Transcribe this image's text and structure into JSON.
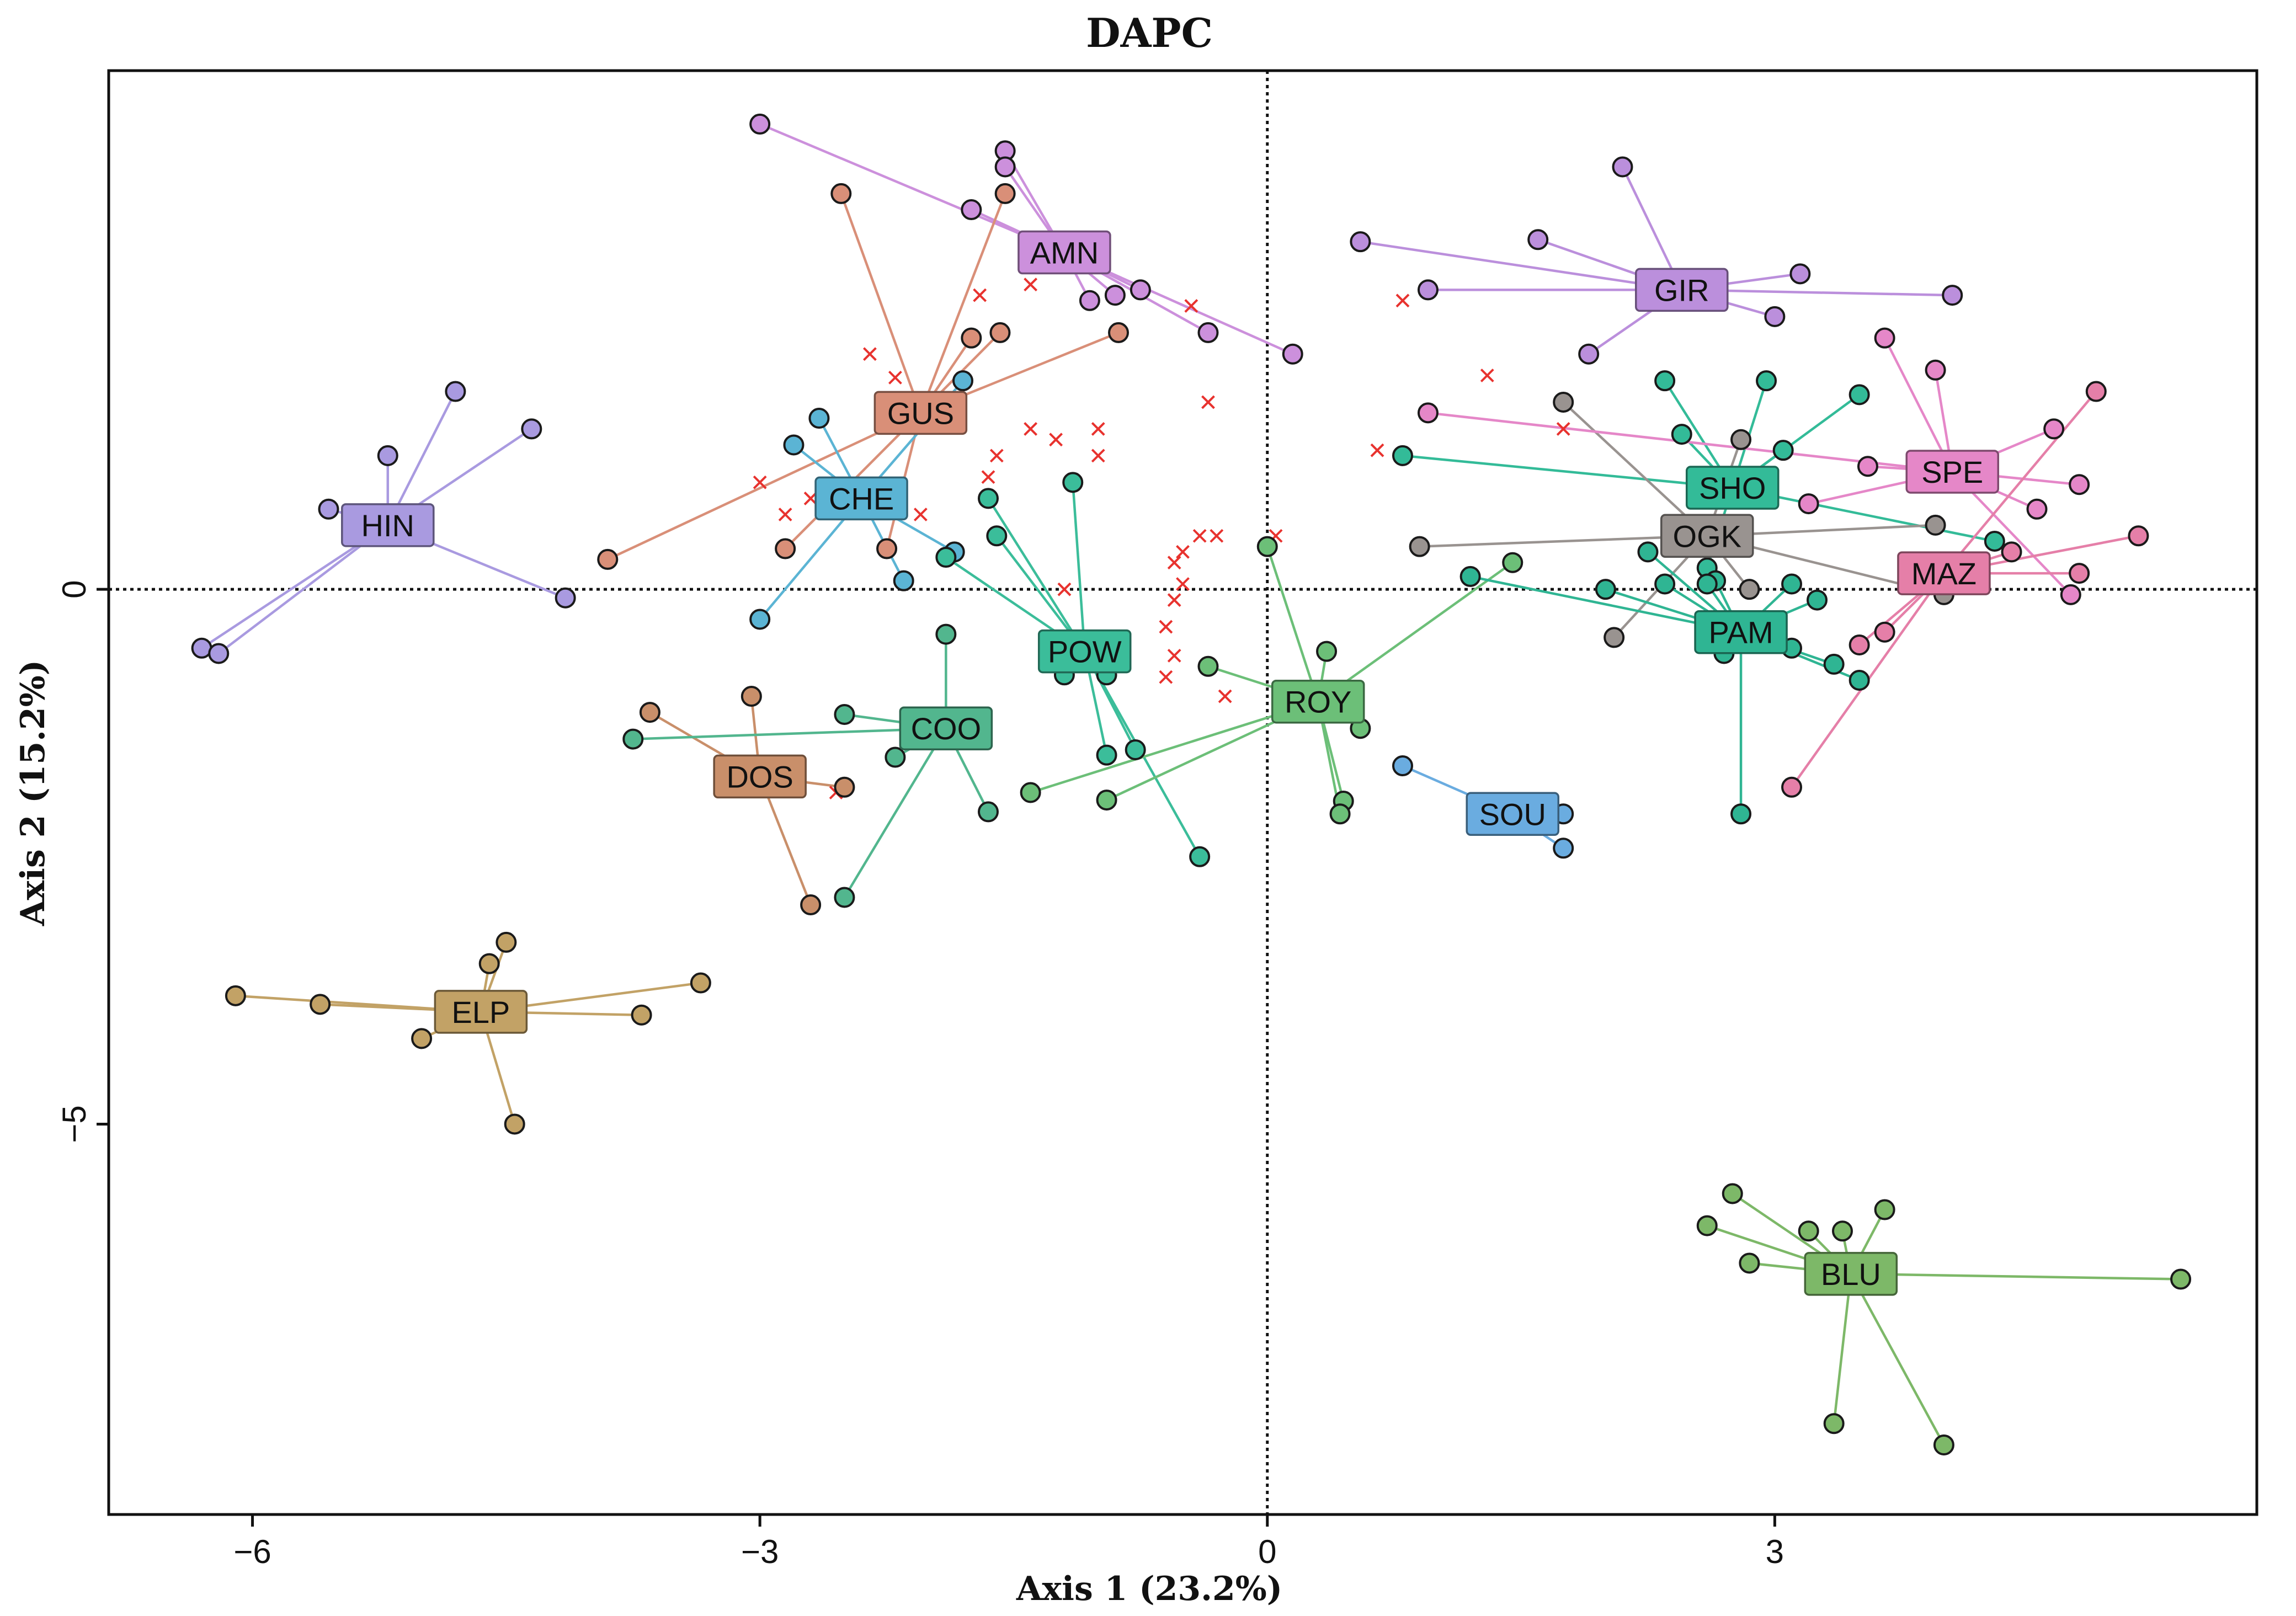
{
  "chart_data": {
    "type": "scatter",
    "title": "DAPC",
    "xlabel": "Axis 1 (23.2%)",
    "ylabel": "Axis 2 (15.2%)",
    "xlim": [
      -6.85,
      5.85
    ],
    "ylim": [
      -8.65,
      4.85
    ],
    "x_ticks": [
      -6,
      -3,
      0,
      3
    ],
    "x_tick_labels": [
      "−6",
      "−3",
      "0",
      "3"
    ],
    "y_ticks": [
      -5,
      0
    ],
    "y_tick_labels": [
      "−5",
      "0"
    ],
    "reference_lines": {
      "x": 0,
      "y": 0,
      "style": "dotted"
    },
    "groups": [
      {
        "label": "HIN",
        "color": "#a99ae0",
        "centroid": [
          -5.2,
          0.6
        ],
        "points": [
          [
            -6.3,
            -0.55
          ],
          [
            -6.2,
            -0.6
          ],
          [
            -5.55,
            0.75
          ],
          [
            -5.2,
            1.25
          ],
          [
            -4.8,
            1.85
          ],
          [
            -4.35,
            1.5
          ],
          [
            -4.15,
            -0.08
          ]
        ]
      },
      {
        "label": "AMN",
        "color": "#cc90dc",
        "centroid": [
          -1.2,
          3.15
        ],
        "points": [
          [
            -3.0,
            4.35
          ],
          [
            -1.55,
            4.1
          ],
          [
            -1.55,
            3.95
          ],
          [
            -1.75,
            3.55
          ],
          [
            -1.05,
            2.7
          ],
          [
            -0.75,
            2.8
          ],
          [
            -0.9,
            2.75
          ],
          [
            -0.35,
            2.4
          ],
          [
            0.15,
            2.2
          ]
        ]
      },
      {
        "label": "GUS",
        "color": "#d98f78",
        "centroid": [
          -2.05,
          1.65
        ],
        "points": [
          [
            -2.52,
            3.7
          ],
          [
            -1.55,
            3.7
          ],
          [
            -1.58,
            2.4
          ],
          [
            -1.75,
            2.35
          ],
          [
            -0.88,
            2.4
          ],
          [
            -3.9,
            0.28
          ],
          [
            -2.85,
            0.38
          ],
          [
            -2.25,
            0.38
          ]
        ]
      },
      {
        "label": "CHE",
        "color": "#5bb4d4",
        "centroid": [
          -2.4,
          0.85
        ],
        "points": [
          [
            -2.65,
            1.6
          ],
          [
            -2.8,
            1.35
          ],
          [
            -1.8,
            1.95
          ],
          [
            -1.85,
            0.35
          ],
          [
            -2.15,
            0.08
          ],
          [
            -3.0,
            -0.28
          ],
          [
            -2.6,
            0.75
          ]
        ]
      },
      {
        "label": "DOS",
        "color": "#c98f6a",
        "centroid": [
          -3.0,
          -1.75
        ],
        "points": [
          [
            -3.05,
            -1.0
          ],
          [
            -3.65,
            -1.15
          ],
          [
            -2.5,
            -1.85
          ],
          [
            -2.7,
            -2.95
          ]
        ]
      },
      {
        "label": "ELP",
        "color": "#c2a266",
        "centroid": [
          -4.65,
          -3.95
        ],
        "points": [
          [
            -6.1,
            -3.8
          ],
          [
            -5.6,
            -3.88
          ],
          [
            -5.0,
            -4.2
          ],
          [
            -4.6,
            -3.5
          ],
          [
            -4.5,
            -3.3
          ],
          [
            -3.35,
            -3.68
          ],
          [
            -3.7,
            -3.98
          ],
          [
            -4.45,
            -5.0
          ]
        ]
      },
      {
        "label": "COO",
        "color": "#52b68e",
        "centroid": [
          -1.9,
          -1.3
        ],
        "points": [
          [
            -3.75,
            -1.4
          ],
          [
            -2.5,
            -1.17
          ],
          [
            -2.2,
            -1.57
          ],
          [
            -1.9,
            -0.42
          ],
          [
            -2.5,
            -2.88
          ],
          [
            -1.65,
            -2.08
          ]
        ]
      },
      {
        "label": "POW",
        "color": "#3bbd9a",
        "centroid": [
          -1.08,
          -0.58
        ],
        "points": [
          [
            -1.15,
            1.0
          ],
          [
            -1.65,
            0.85
          ],
          [
            -1.6,
            0.5
          ],
          [
            -1.9,
            0.3
          ],
          [
            -0.95,
            -0.8
          ],
          [
            -0.95,
            -1.55
          ],
          [
            -0.78,
            -1.5
          ],
          [
            -0.4,
            -2.5
          ],
          [
            -1.2,
            -0.8
          ]
        ]
      },
      {
        "label": "ROY",
        "color": "#6cbf78",
        "centroid": [
          0.3,
          -1.05
        ],
        "points": [
          [
            0.0,
            0.4
          ],
          [
            0.35,
            -0.58
          ],
          [
            0.55,
            -1.3
          ],
          [
            0.45,
            -1.98
          ],
          [
            0.43,
            -2.1
          ],
          [
            -0.35,
            -0.72
          ],
          [
            -1.4,
            -1.9
          ],
          [
            -0.95,
            -1.97
          ],
          [
            1.45,
            0.25
          ]
        ]
      },
      {
        "label": "SOU",
        "color": "#6aace0",
        "centroid": [
          1.45,
          -2.1
        ],
        "points": [
          [
            0.8,
            -1.65
          ],
          [
            1.75,
            -2.1
          ],
          [
            1.75,
            -2.42
          ]
        ]
      },
      {
        "label": "GIR",
        "color": "#bb8fdc",
        "centroid": [
          2.45,
          2.8
        ],
        "points": [
          [
            2.1,
            3.95
          ],
          [
            1.6,
            3.27
          ],
          [
            0.55,
            3.25
          ],
          [
            0.95,
            2.8
          ],
          [
            1.9,
            2.2
          ],
          [
            3.15,
            2.95
          ],
          [
            3.0,
            2.55
          ],
          [
            4.05,
            2.75
          ]
        ]
      },
      {
        "label": "SHO",
        "color": "#33bb98",
        "centroid": [
          2.75,
          0.95
        ],
        "points": [
          [
            2.35,
            1.95
          ],
          [
            2.95,
            1.95
          ],
          [
            3.5,
            1.82
          ],
          [
            2.45,
            1.45
          ],
          [
            0.8,
            1.25
          ],
          [
            3.05,
            1.3
          ],
          [
            4.3,
            0.45
          ],
          [
            2.6,
            0.2
          ]
        ]
      },
      {
        "label": "OGK",
        "color": "#999390",
        "centroid": [
          2.6,
          0.5
        ],
        "points": [
          [
            1.75,
            1.75
          ],
          [
            2.8,
            1.4
          ],
          [
            0.9,
            0.4
          ],
          [
            3.95,
            0.6
          ],
          [
            2.85,
            0.0
          ],
          [
            4.0,
            -0.05
          ],
          [
            2.05,
            -0.45
          ]
        ]
      },
      {
        "label": "PAM",
        "color": "#2fb593",
        "centroid": [
          2.8,
          -0.4
        ],
        "points": [
          [
            1.2,
            0.12
          ],
          [
            2.0,
            0.0
          ],
          [
            2.35,
            0.05
          ],
          [
            2.25,
            0.35
          ],
          [
            2.65,
            0.08
          ],
          [
            3.1,
            0.05
          ],
          [
            3.25,
            -0.1
          ],
          [
            3.1,
            -0.55
          ],
          [
            3.35,
            -0.7
          ],
          [
            3.5,
            -0.85
          ],
          [
            2.8,
            -2.1
          ],
          [
            2.7,
            -0.6
          ],
          [
            2.6,
            0.05
          ]
        ]
      },
      {
        "label": "SPE",
        "color": "#e587c8",
        "centroid": [
          4.05,
          1.1
        ],
        "points": [
          [
            3.65,
            2.35
          ],
          [
            3.95,
            2.05
          ],
          [
            4.65,
            1.5
          ],
          [
            4.8,
            0.98
          ],
          [
            4.75,
            -0.05
          ],
          [
            4.55,
            0.75
          ],
          [
            3.2,
            0.8
          ],
          [
            0.95,
            1.65
          ],
          [
            3.55,
            1.15
          ]
        ]
      },
      {
        "label": "MAZ",
        "color": "#e57fa8",
        "centroid": [
          4.0,
          0.15
        ],
        "points": [
          [
            4.9,
            1.85
          ],
          [
            5.15,
            0.5
          ],
          [
            4.8,
            0.15
          ],
          [
            4.4,
            0.35
          ],
          [
            3.65,
            -0.4
          ],
          [
            3.5,
            -0.52
          ],
          [
            3.1,
            -1.85
          ]
        ]
      },
      {
        "label": "BLU",
        "color": "#7db868",
        "centroid": [
          3.45,
          -6.4
        ],
        "points": [
          [
            2.75,
            -5.65
          ],
          [
            2.6,
            -5.95
          ],
          [
            2.85,
            -6.3
          ],
          [
            3.2,
            -6.0
          ],
          [
            3.4,
            -6.0
          ],
          [
            3.65,
            -5.8
          ],
          [
            3.35,
            -7.8
          ],
          [
            4.0,
            -8.0
          ],
          [
            5.4,
            -6.45
          ]
        ]
      }
    ],
    "unassigned_marker": {
      "symbol": "×",
      "color": "#e8322e",
      "points": [
        [
          -1.7,
          2.75
        ],
        [
          -1.4,
          2.85
        ],
        [
          -0.45,
          2.65
        ],
        [
          0.8,
          2.7
        ],
        [
          -2.35,
          2.2
        ],
        [
          -2.2,
          1.98
        ],
        [
          -0.35,
          1.75
        ],
        [
          1.3,
          2.0
        ],
        [
          -1.4,
          1.5
        ],
        [
          -1.25,
          1.4
        ],
        [
          -1.0,
          1.5
        ],
        [
          1.75,
          1.5
        ],
        [
          0.65,
          1.3
        ],
        [
          -1.6,
          1.25
        ],
        [
          -1.0,
          1.25
        ],
        [
          -1.65,
          1.05
        ],
        [
          -3.0,
          1.0
        ],
        [
          -2.7,
          0.85
        ],
        [
          -2.05,
          0.7
        ],
        [
          -2.85,
          0.7
        ],
        [
          -0.5,
          0.35
        ],
        [
          -0.4,
          0.5
        ],
        [
          -0.3,
          0.5
        ],
        [
          0.05,
          0.5
        ],
        [
          -0.55,
          0.25
        ],
        [
          -0.5,
          0.05
        ],
        [
          -0.55,
          -0.1
        ],
        [
          -1.2,
          0.0
        ],
        [
          -0.6,
          -0.35
        ],
        [
          -1.3,
          -0.65
        ],
        [
          -0.55,
          -0.62
        ],
        [
          -0.6,
          -0.82
        ],
        [
          -0.25,
          -1.0
        ],
        [
          -2.8,
          -1.85
        ],
        [
          -2.55,
          -1.9
        ]
      ]
    }
  }
}
